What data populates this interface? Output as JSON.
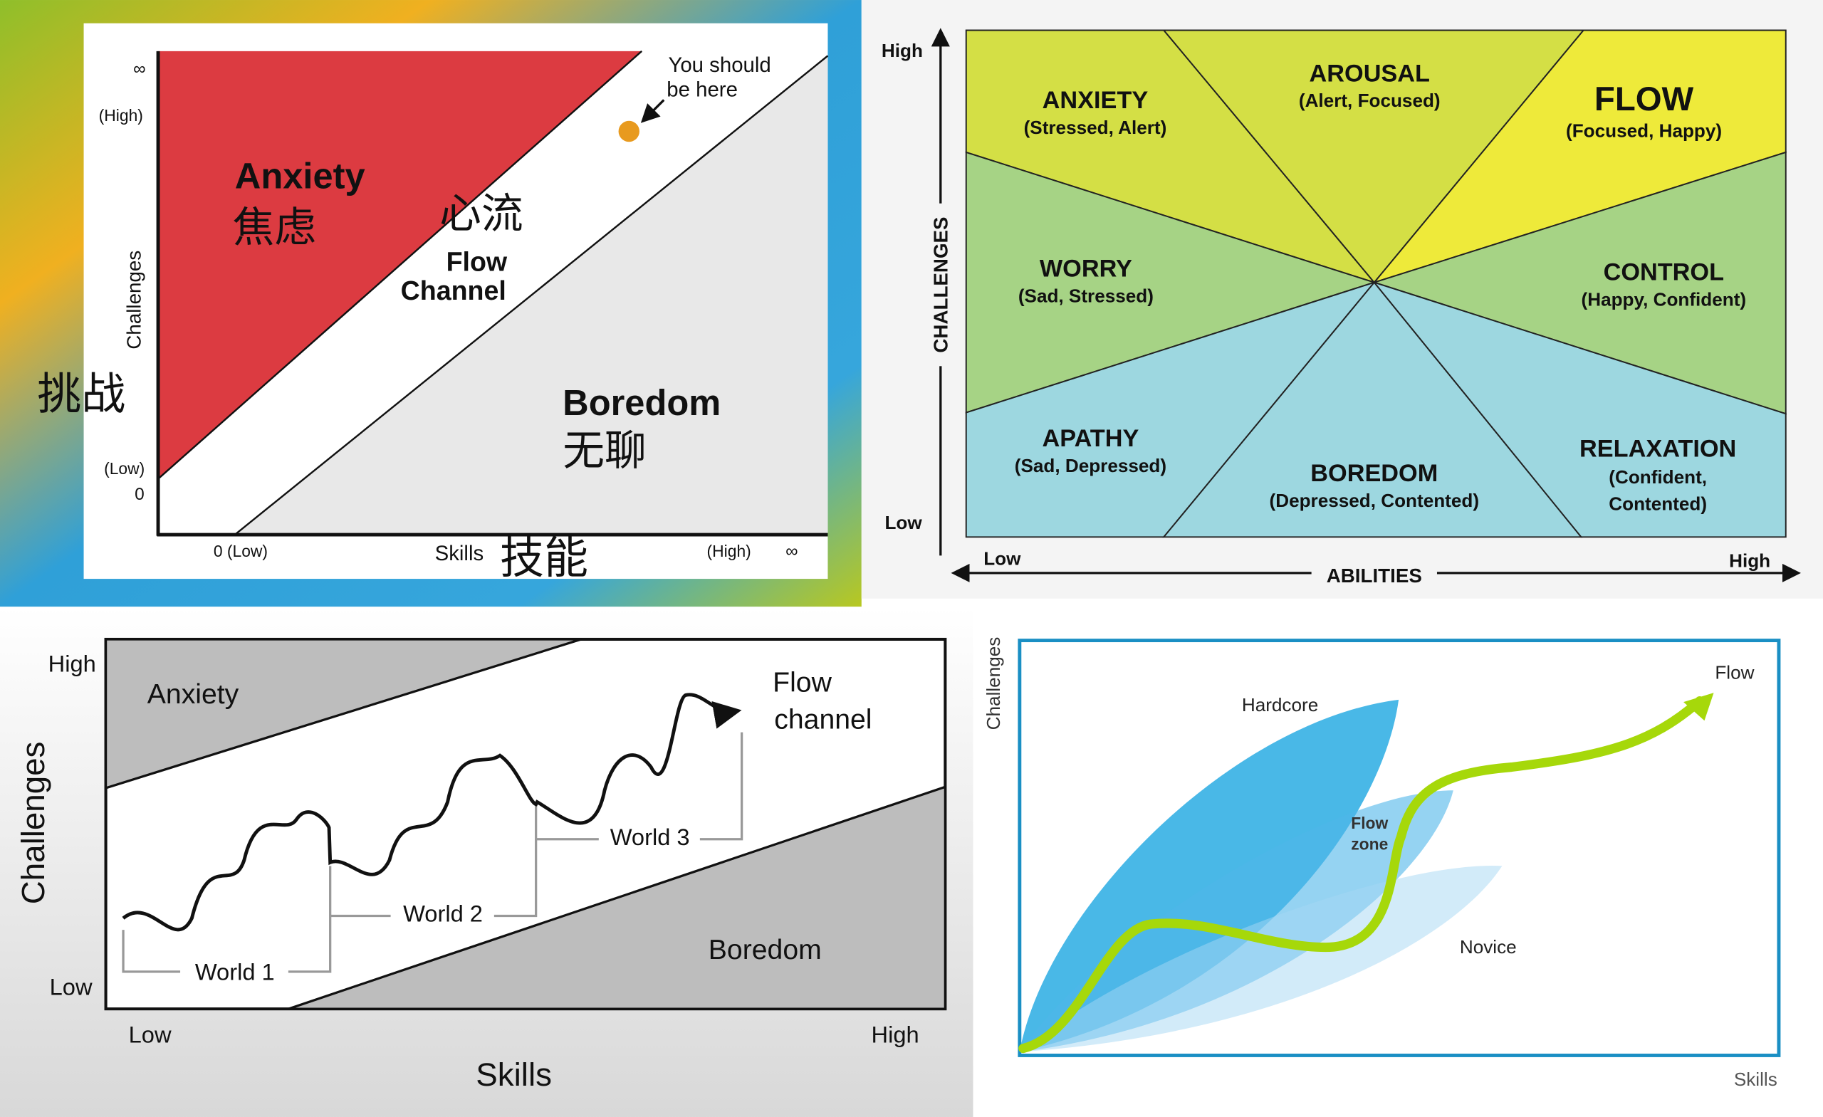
{
  "panel1": {
    "infinity_y": "∞",
    "high_y": "(High)",
    "y_label": "Challenges",
    "y_label_cn": "挑战",
    "low_y": "(Low)",
    "zero_y": "0",
    "anxiety": "Anxiety",
    "anxiety_cn": "焦虑",
    "flow_cn": "心流",
    "flow_line1": "Flow",
    "flow_line2": "Channel",
    "boredom": "Boredom",
    "boredom_cn": "无聊",
    "note_line1": "You should",
    "note_line2": "be here",
    "low_x": "0 (Low)",
    "x_label": "Skills",
    "x_label_cn": "技能",
    "high_x": "(High)",
    "infinity_x": "∞",
    "colors": {
      "anxiety": "#dc3b41",
      "boredom": "#e8e8e8",
      "dot": "#e89a1e"
    }
  },
  "panel2": {
    "high": "High",
    "low": "Low",
    "y_label": "CHALLENGES",
    "x_low": "Low",
    "x_high": "High",
    "x_label": "ABILITIES",
    "zones": [
      {
        "name": "ANXIETY",
        "desc": "(Stressed, Alert)"
      },
      {
        "name": "AROUSAL",
        "desc": "(Alert, Focused)"
      },
      {
        "name": "FLOW",
        "desc": "(Focused, Happy)"
      },
      {
        "name": "WORRY",
        "desc": "(Sad, Stressed)"
      },
      {
        "name": "CONTROL",
        "desc": "(Happy, Confident)"
      },
      {
        "name": "APATHY",
        "desc": "(Sad, Depressed)"
      },
      {
        "name": "BOREDOM",
        "desc": "(Depressed, Contented)"
      },
      {
        "name": "RELAXATION",
        "desc": "(Confident,",
        "desc2": "Contented)"
      }
    ],
    "colors": {
      "yellow_green": "#d4df45",
      "yellow": "#eeea3a",
      "green": "#a6d385",
      "blue": "#9dd7e0"
    }
  },
  "panel3": {
    "high": "High",
    "low": "Low",
    "y_label": "Challenges",
    "x_low": "Low",
    "x_high": "High",
    "x_label": "Skills",
    "anxiety": "Anxiety",
    "boredom": "Boredom",
    "flow_line1": "Flow",
    "flow_line2": "channel",
    "worlds": [
      "World 1",
      "World 2",
      "World 3"
    ]
  },
  "panel4": {
    "y_label": "Challenges",
    "x_label": "Skills",
    "hardcore": "Hardcore",
    "flow_zone_1": "Flow",
    "flow_zone_2": "zone",
    "novice": "Novice",
    "flow": "Flow",
    "colors": {
      "frame": "#1a8fc4",
      "curve": "#a6d80a"
    }
  }
}
